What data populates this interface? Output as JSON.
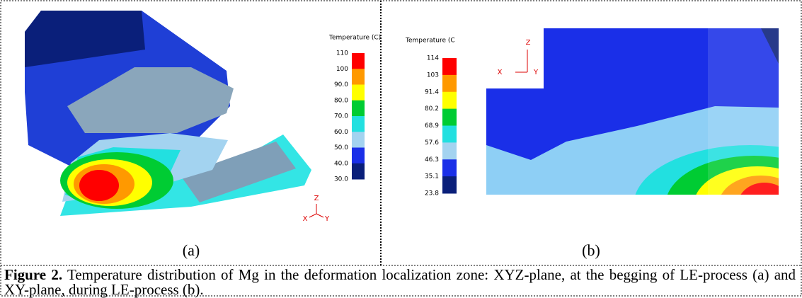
{
  "panels": [
    {
      "legend": {
        "title": "Temperature (C)",
        "labels": [
          "110",
          "100",
          "90.0",
          "80.0",
          "70.0",
          "60.0",
          "50.0",
          "40.0",
          "30.0"
        ]
      },
      "axes": {
        "z": "Z",
        "x": "X",
        "y": "Y"
      },
      "label": "(a)"
    },
    {
      "legend": {
        "title": "Temperature (C",
        "labels": [
          "114",
          "103",
          "91.4",
          "80.2",
          "68.9",
          "57.6",
          "46.3",
          "35.1",
          "23.8"
        ]
      },
      "axes": {
        "z": "Z",
        "x": "X",
        "y": "Y"
      },
      "label": "(b)"
    }
  ],
  "caption": {
    "label": "Figure 2.",
    "text": "Temperature distribution of Mg in the deformation localization zone: XYZ-plane, at the begging of LE-process (a) and XY-plane, during LE-process (b)."
  }
}
